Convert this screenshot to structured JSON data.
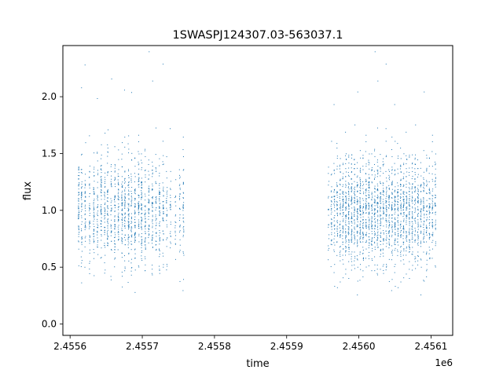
{
  "chart_data": {
    "type": "scatter",
    "title": "1SWASPJ124307.03-563037.1",
    "xlabel": "time",
    "ylabel": "flux",
    "x_offset_label": "1e6",
    "xlim": [
      2455590,
      2456130
    ],
    "ylim": [
      -0.1,
      2.45
    ],
    "x_ticks": [
      2455600,
      2455700,
      2455800,
      2455900,
      2456000,
      2456100
    ],
    "x_tick_labels": [
      "2.4556",
      "2.4557",
      "2.4558",
      "2.4559",
      "2.4560",
      "2.4561"
    ],
    "y_ticks": [
      0.0,
      0.5,
      1.0,
      1.5,
      2.0
    ],
    "y_tick_labels": [
      "0.0",
      "0.5",
      "1.0",
      "1.5",
      "2.0"
    ],
    "grid": false,
    "marker_color": "#1f77b4",
    "observing_nights": [
      {
        "t": 2455612,
        "n": 60
      },
      {
        "t": 2455616,
        "n": 50
      },
      {
        "t": 2455621,
        "n": 40
      },
      {
        "t": 2455627,
        "n": 45
      },
      {
        "t": 2455633,
        "n": 55
      },
      {
        "t": 2455638,
        "n": 40
      },
      {
        "t": 2455643,
        "n": 60
      },
      {
        "t": 2455648,
        "n": 45
      },
      {
        "t": 2455652,
        "n": 55
      },
      {
        "t": 2455657,
        "n": 40
      },
      {
        "t": 2455662,
        "n": 60
      },
      {
        "t": 2455667,
        "n": 50
      },
      {
        "t": 2455672,
        "n": 65
      },
      {
        "t": 2455676,
        "n": 55
      },
      {
        "t": 2455681,
        "n": 70
      },
      {
        "t": 2455685,
        "n": 50
      },
      {
        "t": 2455690,
        "n": 65
      },
      {
        "t": 2455695,
        "n": 60
      },
      {
        "t": 2455699,
        "n": 70
      },
      {
        "t": 2455704,
        "n": 50
      },
      {
        "t": 2455709,
        "n": 45
      },
      {
        "t": 2455714,
        "n": 55
      },
      {
        "t": 2455719,
        "n": 40
      },
      {
        "t": 2455724,
        "n": 55
      },
      {
        "t": 2455729,
        "n": 45
      },
      {
        "t": 2455734,
        "n": 30
      },
      {
        "t": 2455739,
        "n": 25
      },
      {
        "t": 2455746,
        "n": 20
      },
      {
        "t": 2455752,
        "n": 30
      },
      {
        "t": 2455757,
        "n": 40
      },
      {
        "t": 2455958,
        "n": 20
      },
      {
        "t": 2455962,
        "n": 35
      },
      {
        "t": 2455966,
        "n": 40
      },
      {
        "t": 2455970,
        "n": 45
      },
      {
        "t": 2455974,
        "n": 50
      },
      {
        "t": 2455978,
        "n": 60
      },
      {
        "t": 2455982,
        "n": 65
      },
      {
        "t": 2455986,
        "n": 70
      },
      {
        "t": 2455990,
        "n": 70
      },
      {
        "t": 2455994,
        "n": 60
      },
      {
        "t": 2455998,
        "n": 65
      },
      {
        "t": 2456002,
        "n": 70
      },
      {
        "t": 2456006,
        "n": 60
      },
      {
        "t": 2456010,
        "n": 65
      },
      {
        "t": 2456014,
        "n": 70
      },
      {
        "t": 2456018,
        "n": 55
      },
      {
        "t": 2456022,
        "n": 60
      },
      {
        "t": 2456026,
        "n": 65
      },
      {
        "t": 2456030,
        "n": 60
      },
      {
        "t": 2456034,
        "n": 55
      },
      {
        "t": 2456038,
        "n": 60
      },
      {
        "t": 2456042,
        "n": 55
      },
      {
        "t": 2456046,
        "n": 60
      },
      {
        "t": 2456050,
        "n": 65
      },
      {
        "t": 2456054,
        "n": 55
      },
      {
        "t": 2456058,
        "n": 60
      },
      {
        "t": 2456062,
        "n": 65
      },
      {
        "t": 2456066,
        "n": 55
      },
      {
        "t": 2456070,
        "n": 60
      },
      {
        "t": 2456074,
        "n": 55
      },
      {
        "t": 2456078,
        "n": 50
      },
      {
        "t": 2456082,
        "n": 55
      },
      {
        "t": 2456086,
        "n": 45
      },
      {
        "t": 2456090,
        "n": 50
      },
      {
        "t": 2456094,
        "n": 45
      },
      {
        "t": 2456098,
        "n": 50
      },
      {
        "t": 2456102,
        "n": 45
      },
      {
        "t": 2456106,
        "n": 40
      }
    ],
    "flux_mean": 1.0,
    "flux_spread": 0.28
  }
}
